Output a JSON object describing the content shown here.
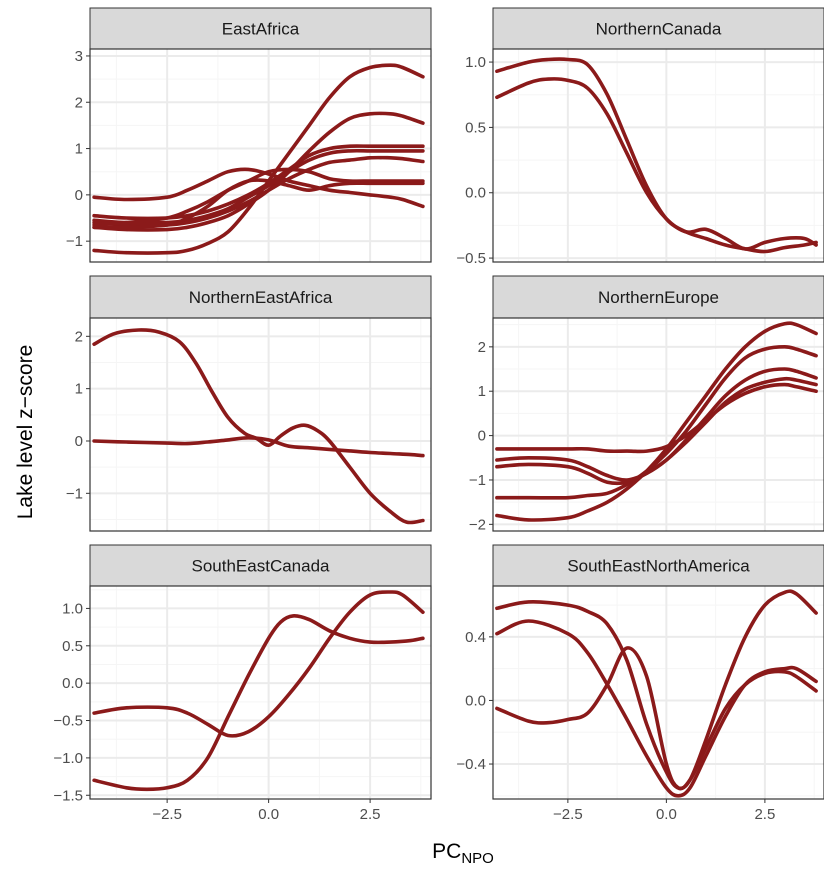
{
  "figure": {
    "ylabel": "Lake level z−score",
    "xlabel_main": "PC",
    "xlabel_sub": "NPO"
  },
  "colors": {
    "line": "#8b1a1a",
    "strip_fill": "#d9d9d9",
    "grid_major": "#ebebeb",
    "grid_minor": "#f5f5f5",
    "border": "#333333"
  },
  "chart_data": [
    {
      "type": "line",
      "title": "EastAfrica",
      "xlim": [
        -4.4,
        4.0
      ],
      "ylim": [
        -1.45,
        3.15
      ],
      "xticks": [
        -2.5,
        0.0,
        2.5
      ],
      "xtick_labels": [
        "−2.5",
        "0.0",
        "2.5"
      ],
      "yticks": [
        -1,
        0,
        1,
        2,
        3
      ],
      "ytick_labels": [
        "−1",
        "0",
        "1",
        "2",
        "3"
      ],
      "show_x_ticks": false,
      "series": [
        {
          "x": [
            -4.3,
            -3.5,
            -2.5,
            -2.0,
            -1.5,
            -1.0,
            -0.5,
            0.0,
            0.5,
            1.0,
            1.5,
            2.0,
            2.5,
            3.0,
            3.3,
            3.8
          ],
          "y": [
            -1.2,
            -1.25,
            -1.25,
            -1.2,
            -1.05,
            -0.8,
            -0.3,
            0.3,
            0.9,
            1.5,
            2.1,
            2.55,
            2.75,
            2.8,
            2.75,
            2.55
          ]
        },
        {
          "x": [
            -4.3,
            -3.5,
            -2.5,
            -2.0,
            -1.5,
            -1.0,
            -0.5,
            0.0,
            0.5,
            1.0,
            1.5,
            2.0,
            2.5,
            3.0,
            3.3,
            3.8
          ],
          "y": [
            -0.7,
            -0.75,
            -0.75,
            -0.7,
            -0.6,
            -0.45,
            -0.2,
            0.1,
            0.5,
            0.95,
            1.35,
            1.65,
            1.75,
            1.75,
            1.7,
            1.55
          ]
        },
        {
          "x": [
            -4.3,
            -3.5,
            -2.5,
            -2.0,
            -1.5,
            -1.0,
            -0.5,
            0.0,
            0.5,
            1.0,
            1.5,
            2.0,
            2.5,
            3.0,
            3.3,
            3.8
          ],
          "y": [
            -0.45,
            -0.5,
            -0.5,
            -0.45,
            -0.35,
            -0.2,
            0.0,
            0.25,
            0.55,
            0.85,
            1.0,
            1.05,
            1.05,
            1.05,
            1.05,
            1.05
          ]
        },
        {
          "x": [
            -4.3,
            -3.5,
            -2.5,
            -2.0,
            -1.5,
            -1.0,
            -0.5,
            0.0,
            0.5,
            1.0,
            1.5,
            2.0,
            2.5,
            3.0,
            3.3,
            3.8
          ],
          "y": [
            -0.55,
            -0.6,
            -0.6,
            -0.55,
            -0.45,
            -0.3,
            -0.05,
            0.2,
            0.5,
            0.75,
            0.9,
            0.95,
            0.95,
            0.95,
            0.95,
            0.95
          ]
        },
        {
          "x": [
            -4.3,
            -3.5,
            -2.5,
            -2.0,
            -1.5,
            -1.0,
            -0.5,
            0.0,
            0.5,
            1.0,
            1.5,
            2.0,
            2.5,
            3.0,
            3.3,
            3.8
          ],
          "y": [
            -0.6,
            -0.65,
            -0.65,
            -0.6,
            -0.5,
            -0.35,
            -0.15,
            0.1,
            0.35,
            0.55,
            0.7,
            0.75,
            0.8,
            0.8,
            0.78,
            0.72
          ]
        },
        {
          "x": [
            -4.3,
            -3.5,
            -2.5,
            -2.0,
            -1.5,
            -1.0,
            -0.5,
            0.0,
            0.5,
            1.0,
            1.5,
            2.0,
            2.5,
            3.0,
            3.3,
            3.8
          ],
          "y": [
            -0.05,
            -0.1,
            -0.05,
            0.1,
            0.3,
            0.5,
            0.55,
            0.45,
            0.3,
            0.2,
            0.1,
            0.05,
            0.0,
            -0.05,
            -0.1,
            -0.25
          ]
        },
        {
          "x": [
            -4.3,
            -3.5,
            -2.5,
            -2.0,
            -1.5,
            -1.0,
            -0.5,
            0.0,
            0.5,
            1.0,
            1.5,
            2.0,
            2.5,
            3.0,
            3.3,
            3.8
          ],
          "y": [
            -0.7,
            -0.7,
            -0.65,
            -0.5,
            -0.25,
            0.1,
            0.3,
            0.3,
            0.2,
            0.1,
            0.2,
            0.25,
            0.25,
            0.25,
            0.25,
            0.25
          ]
        },
        {
          "x": [
            -4.3,
            -3.5,
            -2.5,
            -2.0,
            -1.5,
            -1.0,
            -0.5,
            0.0,
            0.5,
            1.0,
            1.5,
            2.0,
            2.5,
            3.0,
            3.3,
            3.8
          ],
          "y": [
            -0.65,
            -0.6,
            -0.5,
            -0.35,
            -0.15,
            0.1,
            0.3,
            0.5,
            0.55,
            0.5,
            0.35,
            0.3,
            0.3,
            0.3,
            0.3,
            0.3
          ]
        }
      ]
    },
    {
      "type": "line",
      "title": "NorthernCanada",
      "xlim": [
        -4.4,
        4.0
      ],
      "ylim": [
        -0.53,
        1.1
      ],
      "xticks": [
        -2.5,
        0.0,
        2.5
      ],
      "xtick_labels": [
        "−2.5",
        "0.0",
        "2.5"
      ],
      "yticks": [
        -0.5,
        0.0,
        0.5,
        1.0
      ],
      "ytick_labels": [
        "−0.5",
        "0.0",
        "0.5",
        "1.0"
      ],
      "show_x_ticks": false,
      "series": [
        {
          "x": [
            -4.3,
            -3.5,
            -3.0,
            -2.5,
            -2.0,
            -1.5,
            -1.0,
            -0.5,
            0.0,
            0.5,
            1.0,
            1.5,
            2.0,
            2.5,
            3.0,
            3.5,
            3.8
          ],
          "y": [
            0.93,
            1.0,
            1.02,
            1.02,
            0.98,
            0.75,
            0.4,
            0.05,
            -0.2,
            -0.3,
            -0.35,
            -0.4,
            -0.43,
            -0.45,
            -0.42,
            -0.4,
            -0.38
          ]
        },
        {
          "x": [
            -4.3,
            -3.5,
            -3.0,
            -2.5,
            -2.0,
            -1.5,
            -1.0,
            -0.5,
            0.0,
            0.5,
            1.0,
            1.5,
            2.0,
            2.5,
            3.0,
            3.5,
            3.8
          ],
          "y": [
            0.73,
            0.84,
            0.87,
            0.86,
            0.8,
            0.6,
            0.3,
            0.0,
            -0.2,
            -0.3,
            -0.28,
            -0.35,
            -0.43,
            -0.38,
            -0.35,
            -0.35,
            -0.4
          ]
        }
      ]
    },
    {
      "type": "line",
      "title": "NorthernEastAfrica",
      "xlim": [
        -4.4,
        4.0
      ],
      "ylim": [
        -1.72,
        2.35
      ],
      "xticks": [
        -2.5,
        0.0,
        2.5
      ],
      "xtick_labels": [
        "−2.5",
        "0.0",
        "2.5"
      ],
      "yticks": [
        -1,
        0,
        1,
        2
      ],
      "ytick_labels": [
        "−1",
        "0",
        "1",
        "2"
      ],
      "show_x_ticks": false,
      "series": [
        {
          "x": [
            -4.3,
            -3.8,
            -3.2,
            -2.7,
            -2.2,
            -1.8,
            -1.4,
            -1.0,
            -0.6,
            -0.3,
            0.0,
            0.3,
            0.6,
            0.9,
            1.2,
            1.5,
            2.0,
            2.5,
            3.0,
            3.4,
            3.8
          ],
          "y": [
            1.85,
            2.05,
            2.12,
            2.08,
            1.9,
            1.5,
            0.95,
            0.45,
            0.15,
            0.05,
            -0.08,
            0.1,
            0.25,
            0.3,
            0.2,
            0.0,
            -0.5,
            -1.0,
            -1.35,
            -1.55,
            -1.52
          ]
        },
        {
          "x": [
            -4.3,
            -3.5,
            -2.5,
            -2.0,
            -1.5,
            -1.0,
            -0.5,
            0.0,
            0.5,
            1.0,
            1.5,
            2.0,
            2.5,
            3.0,
            3.5,
            3.8
          ],
          "y": [
            0.0,
            -0.02,
            -0.04,
            -0.05,
            -0.02,
            0.02,
            0.06,
            0.02,
            -0.1,
            -0.13,
            -0.16,
            -0.19,
            -0.22,
            -0.24,
            -0.26,
            -0.28
          ]
        }
      ]
    },
    {
      "type": "line",
      "title": "NorthernEurope",
      "xlim": [
        -4.4,
        4.0
      ],
      "ylim": [
        -2.15,
        2.65
      ],
      "xticks": [
        -2.5,
        0.0,
        2.5
      ],
      "xtick_labels": [
        "−2.5",
        "0.0",
        "2.5"
      ],
      "yticks": [
        -2,
        -1,
        0,
        1,
        2
      ],
      "ytick_labels": [
        "−2",
        "−1",
        "0",
        "1",
        "2"
      ],
      "show_x_ticks": false,
      "series": [
        {
          "x": [
            -4.3,
            -3.5,
            -2.5,
            -2.0,
            -1.5,
            -1.0,
            -0.5,
            0.0,
            0.5,
            1.0,
            1.5,
            2.0,
            2.5,
            3.0,
            3.3,
            3.8
          ],
          "y": [
            -1.8,
            -1.9,
            -1.85,
            -1.7,
            -1.5,
            -1.2,
            -0.8,
            -0.3,
            0.3,
            0.9,
            1.5,
            2.0,
            2.35,
            2.52,
            2.5,
            2.3
          ]
        },
        {
          "x": [
            -4.3,
            -3.5,
            -2.5,
            -2.0,
            -1.5,
            -1.0,
            -0.5,
            0.0,
            0.5,
            1.0,
            1.5,
            2.0,
            2.5,
            3.0,
            3.3,
            3.8
          ],
          "y": [
            -1.4,
            -1.4,
            -1.4,
            -1.35,
            -1.3,
            -1.1,
            -0.8,
            -0.4,
            0.1,
            0.7,
            1.3,
            1.75,
            1.95,
            2.0,
            1.95,
            1.8
          ]
        },
        {
          "x": [
            -4.3,
            -3.5,
            -2.5,
            -2.0,
            -1.5,
            -1.0,
            -0.5,
            0.0,
            0.5,
            1.0,
            1.5,
            2.0,
            2.5,
            3.0,
            3.3,
            3.8
          ],
          "y": [
            -0.55,
            -0.5,
            -0.55,
            -0.7,
            -0.9,
            -1.0,
            -0.85,
            -0.55,
            -0.1,
            0.4,
            0.9,
            1.25,
            1.45,
            1.5,
            1.45,
            1.3
          ]
        },
        {
          "x": [
            -4.3,
            -3.5,
            -2.5,
            -2.0,
            -1.5,
            -1.0,
            -0.5,
            0.0,
            0.5,
            1.0,
            1.5,
            2.0,
            2.5,
            3.0,
            3.3,
            3.8
          ],
          "y": [
            -0.7,
            -0.65,
            -0.7,
            -0.85,
            -1.05,
            -1.05,
            -0.85,
            -0.55,
            -0.15,
            0.3,
            0.75,
            1.05,
            1.2,
            1.28,
            1.25,
            1.15
          ]
        },
        {
          "x": [
            -4.3,
            -3.5,
            -2.5,
            -2.0,
            -1.5,
            -1.0,
            -0.5,
            0.0,
            0.5,
            1.0,
            1.5,
            2.0,
            2.5,
            3.0,
            3.3,
            3.8
          ],
          "y": [
            -0.3,
            -0.3,
            -0.3,
            -0.3,
            -0.35,
            -0.35,
            -0.35,
            -0.25,
            0.0,
            0.35,
            0.7,
            0.95,
            1.1,
            1.15,
            1.1,
            1.0
          ]
        }
      ]
    },
    {
      "type": "line",
      "title": "SouthEastCanada",
      "xlim": [
        -4.4,
        4.0
      ],
      "ylim": [
        -1.55,
        1.3
      ],
      "xticks": [
        -2.5,
        0.0,
        2.5
      ],
      "xtick_labels": [
        "−2.5",
        "0.0",
        "2.5"
      ],
      "yticks": [
        -1.5,
        -1.0,
        -0.5,
        0.0,
        0.5,
        1.0
      ],
      "ytick_labels": [
        "−1.5",
        "−1.0",
        "−0.5",
        "0.0",
        "0.5",
        "1.0"
      ],
      "show_x_ticks": true,
      "series": [
        {
          "x": [
            -4.3,
            -3.5,
            -3.0,
            -2.5,
            -2.0,
            -1.5,
            -1.0,
            -0.5,
            0.0,
            0.3,
            0.6,
            1.0,
            1.5,
            2.0,
            2.5,
            3.0,
            3.5,
            3.8
          ],
          "y": [
            -1.3,
            -1.4,
            -1.42,
            -1.4,
            -1.3,
            -1.0,
            -0.45,
            0.1,
            0.6,
            0.82,
            0.9,
            0.85,
            0.7,
            0.6,
            0.55,
            0.55,
            0.57,
            0.6
          ]
        },
        {
          "x": [
            -4.3,
            -3.5,
            -2.5,
            -2.0,
            -1.5,
            -1.0,
            -0.5,
            0.0,
            0.5,
            1.0,
            1.5,
            2.0,
            2.5,
            3.0,
            3.3,
            3.8
          ],
          "y": [
            -0.4,
            -0.33,
            -0.33,
            -0.4,
            -0.55,
            -0.7,
            -0.65,
            -0.45,
            -0.15,
            0.2,
            0.6,
            0.95,
            1.18,
            1.22,
            1.18,
            0.95
          ]
        }
      ]
    },
    {
      "type": "line",
      "title": "SouthEastNorthAmerica",
      "xlim": [
        -4.4,
        4.0
      ],
      "ylim": [
        -0.62,
        0.72
      ],
      "xticks": [
        -2.5,
        0.0,
        2.5
      ],
      "xtick_labels": [
        "−2.5",
        "0.0",
        "2.5"
      ],
      "yticks": [
        -0.4,
        0.0,
        0.4
      ],
      "ytick_labels": [
        "−0.4",
        "0.0",
        "0.4"
      ],
      "show_x_ticks": true,
      "series": [
        {
          "x": [
            -4.3,
            -3.5,
            -2.5,
            -2.0,
            -1.5,
            -1.0,
            -0.5,
            0.0,
            0.3,
            0.6,
            1.0,
            1.5,
            2.0,
            2.5,
            3.0,
            3.3,
            3.8
          ],
          "y": [
            0.58,
            0.62,
            0.6,
            0.56,
            0.48,
            0.25,
            -0.15,
            -0.45,
            -0.55,
            -0.5,
            -0.25,
            0.1,
            0.4,
            0.6,
            0.68,
            0.67,
            0.55
          ]
        },
        {
          "x": [
            -4.3,
            -3.5,
            -2.5,
            -2.0,
            -1.5,
            -1.0,
            -0.5,
            0.0,
            0.3,
            0.6,
            1.0,
            1.5,
            2.0,
            2.5,
            3.0,
            3.3,
            3.8
          ],
          "y": [
            0.42,
            0.5,
            0.42,
            0.3,
            0.1,
            -0.12,
            -0.35,
            -0.55,
            -0.6,
            -0.55,
            -0.35,
            -0.1,
            0.1,
            0.18,
            0.2,
            0.2,
            0.12
          ]
        },
        {
          "x": [
            -4.3,
            -3.5,
            -3.0,
            -2.5,
            -2.0,
            -1.5,
            -1.0,
            -0.5,
            0.0,
            0.3,
            0.6,
            1.0,
            1.5,
            2.0,
            2.5,
            3.0,
            3.3,
            3.8
          ],
          "y": [
            -0.05,
            -0.13,
            -0.14,
            -0.12,
            -0.08,
            0.1,
            0.33,
            0.15,
            -0.4,
            -0.55,
            -0.5,
            -0.3,
            -0.05,
            0.1,
            0.17,
            0.18,
            0.15,
            0.06
          ]
        }
      ]
    }
  ]
}
